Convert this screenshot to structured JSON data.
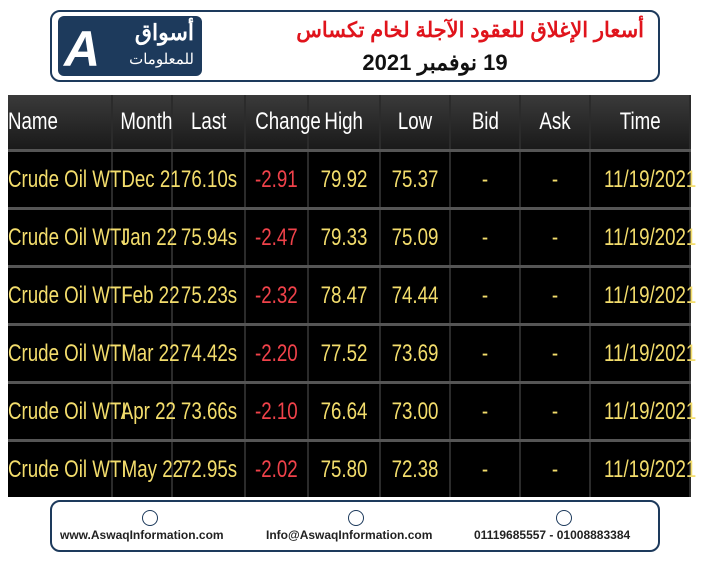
{
  "header": {
    "title": "أسعار الإغلاق للعقود الآجلة لخام تكساس",
    "date": "19 نوفمبر 2021",
    "logo": {
      "line1": "أسواق",
      "line2": "للمعلومات"
    }
  },
  "table": {
    "columns": [
      "Name",
      "Month",
      "Last",
      "Change",
      "High",
      "Low",
      "Bid",
      "Ask",
      "Time"
    ],
    "rows": [
      [
        "Crude Oil WTI",
        "Dec 21",
        "76.10s",
        "-2.91",
        "79.92",
        "75.37",
        "-",
        "-",
        "11/19/2021"
      ],
      [
        "Crude Oil WTI",
        "Jan 22",
        "75.94s",
        "-2.47",
        "79.33",
        "75.09",
        "-",
        "-",
        "11/19/2021"
      ],
      [
        "Crude Oil WTI",
        "Feb 22",
        "75.23s",
        "-2.32",
        "78.47",
        "74.44",
        "-",
        "-",
        "11/19/2021"
      ],
      [
        "Crude Oil WTI",
        "Mar 22",
        "74.42s",
        "-2.20",
        "77.52",
        "73.69",
        "-",
        "-",
        "11/19/2021"
      ],
      [
        "Crude Oil WTI",
        "Apr 22",
        "73.66s",
        "-2.10",
        "76.64",
        "73.00",
        "-",
        "-",
        "11/19/2021"
      ],
      [
        "Crude Oil WTI",
        "May 22",
        "72.95s",
        "-2.02",
        "75.80",
        "72.38",
        "-",
        "-",
        "11/19/2021"
      ]
    ]
  },
  "footer": {
    "website": "www.AswaqInformation.com",
    "email": "Info@AswaqInformation.com",
    "phone": "01119685557 - 01008883384"
  }
}
